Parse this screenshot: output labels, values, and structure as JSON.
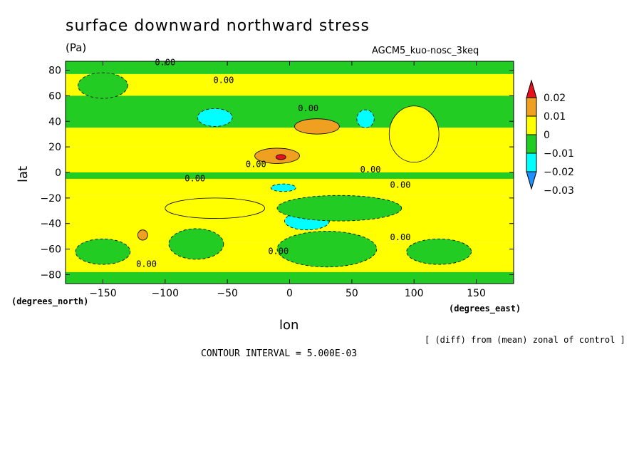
{
  "chart_data": {
    "type": "heatmap",
    "title": "surface downward northward stress",
    "units": "(Pa)",
    "dataset": "AGCM5_kuo-nosc_3keq",
    "xlabel": "lon",
    "ylabel": "lat",
    "x_units_label": "(degrees_north)",
    "y_units_label": "(degrees_east)",
    "note": "[ (diff) from (mean) zonal of control ]",
    "contour_interval_label": "CONTOUR INTERVAL = 5.000E-03",
    "xlim": [
      -180,
      180
    ],
    "ylim": [
      -87,
      87
    ],
    "x_ticks": [
      -150,
      -100,
      -50,
      0,
      50,
      100,
      150
    ],
    "y_ticks": [
      80,
      60,
      40,
      20,
      0,
      -20,
      -40,
      -60,
      -80
    ],
    "x_tick_labels": [
      "−150",
      "−100",
      "−50",
      "0",
      "50",
      "100",
      "150"
    ],
    "y_tick_labels": [
      "80",
      "60",
      "40",
      "20",
      "0",
      "−20",
      "−40",
      "−60",
      "−80"
    ],
    "colorbar": {
      "levels": [
        "0.02",
        "0.01",
        "0",
        "−0.01",
        "−0.02",
        "−0.03"
      ],
      "colors": [
        "#e8101c",
        "#f0a020",
        "#ffff00",
        "#22cc22",
        "#00ffff",
        "#1e90ff"
      ]
    },
    "fill_colors": {
      "positive_high": "#e8101c",
      "positive": "#f0a020",
      "zero_pos": "#ffff00",
      "zero_neg": "#22cc22",
      "negative": "#00ffff",
      "negative_low": "#1e90ff"
    },
    "band_rows": [
      {
        "lat": [
          77,
          87
        ],
        "level": "zero_neg"
      },
      {
        "lat": [
          60,
          77
        ],
        "level": "zero_pos"
      },
      {
        "lat": [
          35,
          60
        ],
        "level": "zero_neg"
      },
      {
        "lat": [
          20,
          35
        ],
        "level": "zero_pos"
      },
      {
        "lat": [
          0,
          20
        ],
        "level": "zero_pos"
      },
      {
        "lat": [
          -5,
          0
        ],
        "level": "zero_neg"
      },
      {
        "lat": [
          -18,
          -5
        ],
        "level": "zero_pos"
      },
      {
        "lat": [
          -55,
          -18
        ],
        "level": "zero_pos"
      },
      {
        "lat": [
          -78,
          -55
        ],
        "level": "zero_pos"
      },
      {
        "lat": [
          -87,
          -78
        ],
        "level": "zero_neg"
      }
    ],
    "features": [
      {
        "lon": -60,
        "lat": 43,
        "rx": 14,
        "ry": 7,
        "level": "negative"
      },
      {
        "lon": 61,
        "lat": 42,
        "rx": 7,
        "ry": 7,
        "level": "negative"
      },
      {
        "lon": 22,
        "lat": 36,
        "rx": 18,
        "ry": 6,
        "level": "positive"
      },
      {
        "lon": -10,
        "lat": 13,
        "rx": 18,
        "ry": 6,
        "level": "positive"
      },
      {
        "lon": -7,
        "lat": 12,
        "rx": 4,
        "ry": 2,
        "level": "positive_high"
      },
      {
        "lon": -5,
        "lat": -12,
        "rx": 10,
        "ry": 3,
        "level": "negative"
      },
      {
        "lon": 14,
        "lat": -38,
        "rx": 18,
        "ry": 7,
        "level": "negative"
      },
      {
        "lon": -118,
        "lat": -49,
        "rx": 4,
        "ry": 4,
        "level": "positive"
      },
      {
        "lon": 100,
        "lat": 30,
        "rx": 20,
        "ry": 22,
        "level": "zero_pos"
      },
      {
        "lon": -150,
        "lat": 68,
        "rx": 20,
        "ry": 10,
        "level": "zero_neg"
      },
      {
        "lon": -75,
        "lat": -56,
        "rx": 22,
        "ry": 12,
        "level": "zero_neg"
      },
      {
        "lon": 30,
        "lat": -60,
        "rx": 40,
        "ry": 14,
        "level": "zero_neg"
      },
      {
        "lon": 120,
        "lat": -62,
        "rx": 26,
        "ry": 10,
        "level": "zero_neg"
      },
      {
        "lon": -150,
        "lat": -62,
        "rx": 22,
        "ry": 10,
        "level": "zero_neg"
      },
      {
        "lon": 40,
        "lat": -28,
        "rx": 50,
        "ry": 10,
        "level": "zero_neg"
      },
      {
        "lon": -60,
        "lat": -28,
        "rx": 40,
        "ry": 8,
        "level": "zero_pos"
      }
    ],
    "contour_labels": [
      {
        "text": "0.00",
        "lon": -100,
        "lat": 86
      },
      {
        "text": "0.00",
        "lon": -53,
        "lat": 72
      },
      {
        "text": "0.00",
        "lon": 15,
        "lat": 50
      },
      {
        "text": "0.00",
        "lon": -27,
        "lat": 6
      },
      {
        "text": "0.00",
        "lon": -76,
        "lat": -5
      },
      {
        "text": "0.00",
        "lon": 65,
        "lat": 2
      },
      {
        "text": "0.00",
        "lon": 89,
        "lat": -10
      },
      {
        "text": "0.00",
        "lon": -115,
        "lat": -72
      },
      {
        "text": "0.00",
        "lon": -9,
        "lat": -62
      },
      {
        "text": "0.00",
        "lon": 89,
        "lat": -51
      }
    ]
  }
}
